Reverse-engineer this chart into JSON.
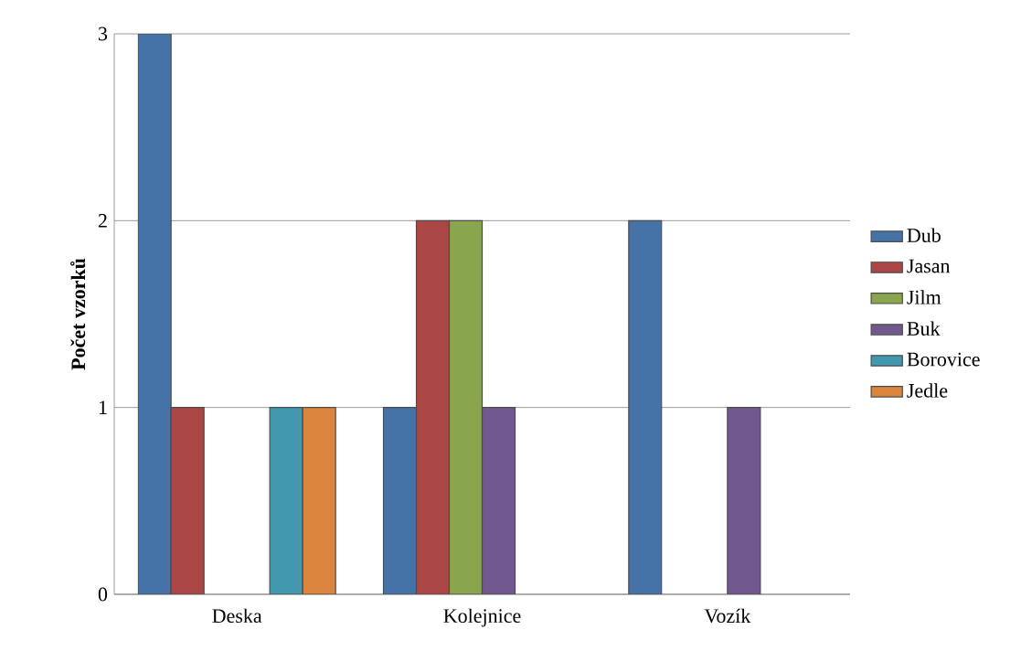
{
  "chart_data": {
    "type": "bar",
    "ylabel": "Počet vzorků",
    "categories": [
      "Deska",
      "Kolejnice",
      "Vozík"
    ],
    "series": [
      {
        "name": "Dub",
        "color": "#4572a7",
        "values": [
          3,
          1,
          2
        ]
      },
      {
        "name": "Jasan",
        "color": "#aa4643",
        "values": [
          1,
          2,
          null
        ]
      },
      {
        "name": "Jilm",
        "color": "#89a54e",
        "values": [
          null,
          2,
          null
        ]
      },
      {
        "name": "Buk",
        "color": "#71588f",
        "values": [
          null,
          1,
          1
        ]
      },
      {
        "name": "Borovice",
        "color": "#4198af",
        "values": [
          1,
          null,
          null
        ]
      },
      {
        "name": "Jedle",
        "color": "#db843d",
        "values": [
          1,
          null,
          null
        ]
      }
    ],
    "ylim": [
      0,
      3
    ],
    "yticks": [
      0,
      1,
      2,
      3
    ],
    "grid": "y",
    "legend": "right"
  }
}
